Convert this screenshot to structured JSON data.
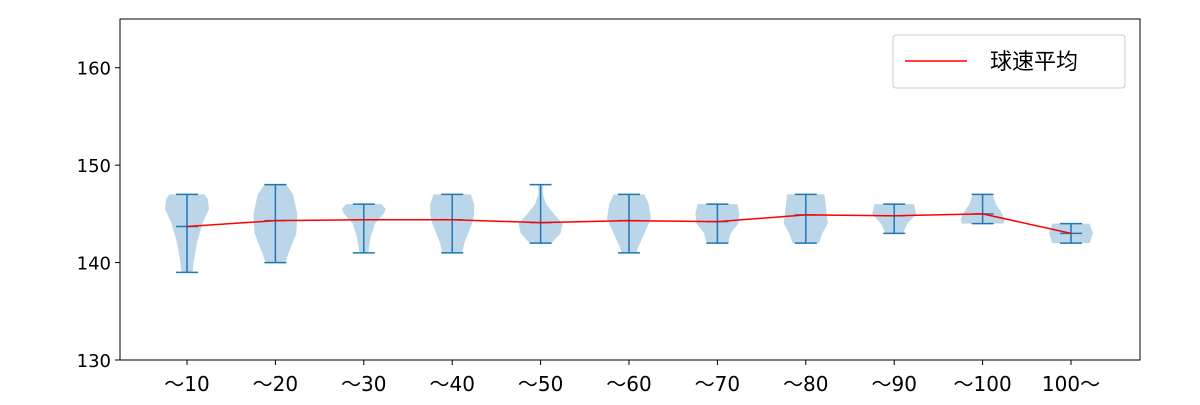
{
  "chart_data": {
    "type": "violin",
    "title": "",
    "xlabel": "",
    "ylabel": "",
    "ylim": [
      130,
      165
    ],
    "yticks": [
      130,
      140,
      150,
      160
    ],
    "grid": false,
    "legend": {
      "placement": "top-right",
      "entries": [
        {
          "name": "球速平均",
          "color": "#ff0000"
        }
      ]
    },
    "colors": {
      "violin_fill": "#1f77b4",
      "violin_alpha": 0.3,
      "whisker": "#1f77b4",
      "mean_line": "#ff0000"
    },
    "categories": [
      "〜10",
      "〜20",
      "〜30",
      "〜40",
      "〜50",
      "〜60",
      "〜70",
      "〜80",
      "〜90",
      "〜100",
      "100〜"
    ],
    "min": [
      139,
      140,
      141,
      141,
      142,
      141,
      142,
      142,
      143,
      144,
      142
    ],
    "max": [
      147,
      148,
      146,
      147,
      148,
      147,
      146,
      147,
      146,
      147,
      144
    ],
    "mean": [
      143.7,
      144.3,
      144.4,
      144.4,
      144.1,
      144.3,
      144.2,
      144.9,
      144.8,
      145.0,
      143.0
    ],
    "density": [
      [
        [
          139,
          0.25
        ],
        [
          140,
          0.3
        ],
        [
          142,
          0.45
        ],
        [
          144,
          0.7
        ],
        [
          145.5,
          1.0
        ],
        [
          146.5,
          0.95
        ],
        [
          147,
          0.8
        ]
      ],
      [
        [
          140,
          0.45
        ],
        [
          141,
          0.6
        ],
        [
          143,
          0.95
        ],
        [
          145,
          1.0
        ],
        [
          147,
          0.8
        ],
        [
          148,
          0.5
        ]
      ],
      [
        [
          141,
          0.2
        ],
        [
          142.5,
          0.3
        ],
        [
          144,
          0.5
        ],
        [
          145,
          0.9
        ],
        [
          145.5,
          1.0
        ],
        [
          146,
          0.8
        ]
      ],
      [
        [
          141,
          0.45
        ],
        [
          142,
          0.55
        ],
        [
          144,
          0.9
        ],
        [
          145,
          1.0
        ],
        [
          146,
          1.0
        ],
        [
          147,
          0.85
        ]
      ],
      [
        [
          142,
          0.5
        ],
        [
          143,
          0.9
        ],
        [
          144,
          1.0
        ],
        [
          145,
          0.6
        ],
        [
          146,
          0.25
        ],
        [
          147,
          0.1
        ],
        [
          148,
          0.1
        ]
      ],
      [
        [
          141,
          0.35
        ],
        [
          141.5,
          0.4
        ],
        [
          143,
          0.7
        ],
        [
          144.5,
          1.0
        ],
        [
          146,
          0.9
        ],
        [
          147,
          0.7
        ]
      ],
      [
        [
          142,
          0.5
        ],
        [
          143,
          0.6
        ],
        [
          144,
          0.95
        ],
        [
          145,
          1.0
        ],
        [
          146,
          0.9
        ]
      ],
      [
        [
          142,
          0.6
        ],
        [
          143,
          0.75
        ],
        [
          144,
          1.0
        ],
        [
          145,
          0.95
        ],
        [
          146,
          0.9
        ],
        [
          147,
          0.85
        ]
      ],
      [
        [
          143,
          0.4
        ],
        [
          144,
          0.6
        ],
        [
          145,
          1.0
        ],
        [
          146,
          0.9
        ]
      ],
      [
        [
          144,
          0.95
        ],
        [
          144.4,
          1.0
        ],
        [
          145,
          0.9
        ],
        [
          146,
          0.6
        ],
        [
          147,
          0.45
        ]
      ],
      [
        [
          142,
          0.85
        ],
        [
          143,
          1.0
        ],
        [
          144,
          0.85
        ]
      ]
    ]
  }
}
